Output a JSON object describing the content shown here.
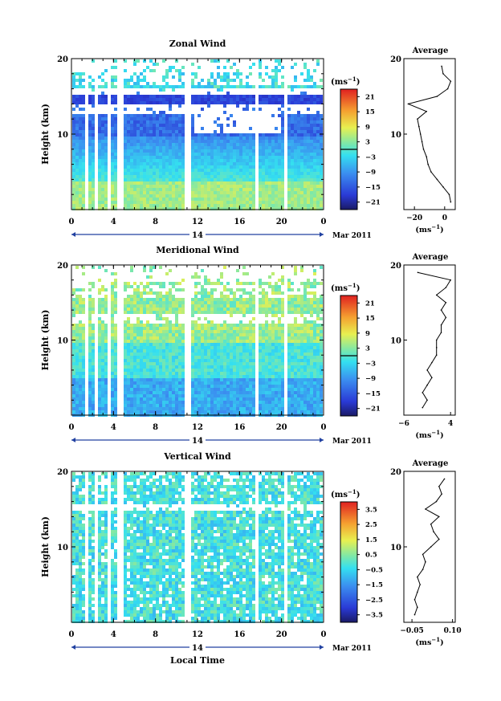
{
  "chart_data": [
    {
      "type": "heatmap",
      "title": "Zonal Wind",
      "ylabel": "Height (km)",
      "ylim": [
        0,
        20
      ],
      "x_ticks": [
        "0",
        "4",
        "8",
        "12",
        "16",
        "20",
        "0"
      ],
      "date_label": "14",
      "month_label": "Mar 2011",
      "colorbar": {
        "unit": "(ms",
        "unit_exp": "−1",
        "unit_close": ")",
        "ticks": [
          "21",
          "15",
          "9",
          "3",
          "−3",
          "−9",
          "−15",
          "−21"
        ],
        "range": [
          -24,
          24
        ],
        "zero_line": true
      },
      "profile": {
        "title": "Average",
        "xlim": [
          -27,
          7
        ],
        "x_ticks": [
          "−20",
          "0"
        ],
        "x_tick_values": [
          -20,
          0
        ],
        "unit": "(ms",
        "unit_exp": "−1",
        "unit_close": ")",
        "heights": [
          1,
          2,
          3,
          4,
          5,
          6,
          7,
          8,
          9,
          10,
          11,
          12,
          13,
          14,
          15,
          16,
          17,
          18,
          19
        ],
        "values": [
          4,
          3,
          -1,
          -5,
          -9,
          -11,
          -12,
          -14,
          -15,
          -16,
          -17,
          -18,
          -12,
          -24,
          -5,
          2,
          4,
          -1,
          -2
        ]
      }
    },
    {
      "type": "heatmap",
      "title": "Meridional Wind",
      "ylabel": "Height (km)",
      "ylim": [
        0,
        20
      ],
      "x_ticks": [
        "0",
        "4",
        "8",
        "12",
        "16",
        "20",
        "0"
      ],
      "date_label": "14",
      "month_label": "Mar 2011",
      "colorbar": {
        "unit": "(ms",
        "unit_exp": "−1",
        "unit_close": ")",
        "ticks": [
          "21",
          "15",
          "9",
          "3",
          "−3",
          "−9",
          "−15",
          "−21"
        ],
        "range": [
          -24,
          24
        ],
        "zero_line": true
      },
      "profile": {
        "title": "Average",
        "xlim": [
          -6,
          5
        ],
        "x_ticks": [
          "−6",
          "4"
        ],
        "x_tick_values": [
          -6,
          4
        ],
        "unit": "(ms",
        "unit_exp": "−1",
        "unit_close": ")",
        "heights": [
          1,
          2,
          3,
          4,
          5,
          6,
          7,
          8,
          9,
          10,
          11,
          12,
          13,
          14,
          15,
          16,
          17,
          18,
          19
        ],
        "values": [
          -2,
          -1,
          -2,
          -1,
          0,
          -1,
          0,
          1,
          1,
          1,
          2,
          2,
          3,
          2,
          3,
          1,
          3,
          4,
          -3
        ]
      }
    },
    {
      "type": "heatmap",
      "title": "Vertical Wind",
      "ylabel": "Height (km)",
      "ylim": [
        0,
        20
      ],
      "x_ticks": [
        "0",
        "4",
        "8",
        "12",
        "16",
        "20",
        "0"
      ],
      "date_label": "14",
      "month_label": "Mar 2011",
      "xlabel": "Local Time",
      "colorbar": {
        "unit": "(ms",
        "unit_exp": "−1",
        "unit_close": ")",
        "ticks": [
          "3.5",
          "2.5",
          "1.5",
          "0.5",
          "−0.5",
          "−1.5",
          "−2.5",
          "−3.5"
        ],
        "range": [
          -4,
          4
        ],
        "zero_line": false
      },
      "profile": {
        "title": "Average",
        "xlim": [
          -0.08,
          0.11
        ],
        "x_ticks": [
          "−0.05",
          "0.10"
        ],
        "x_tick_values": [
          -0.05,
          0.1
        ],
        "unit": "(ms",
        "unit_exp": "−1",
        "unit_close": ")",
        "heights": [
          1,
          2,
          3,
          4,
          5,
          6,
          7,
          8,
          9,
          10,
          11,
          12,
          13,
          14,
          15,
          16,
          17,
          18,
          19
        ],
        "values": [
          -0.04,
          -0.03,
          -0.04,
          -0.03,
          -0.02,
          -0.03,
          -0.01,
          0.0,
          -0.01,
          0.02,
          0.05,
          0.03,
          0.02,
          0.05,
          0.0,
          0.04,
          0.06,
          0.05,
          0.07
        ]
      }
    }
  ]
}
